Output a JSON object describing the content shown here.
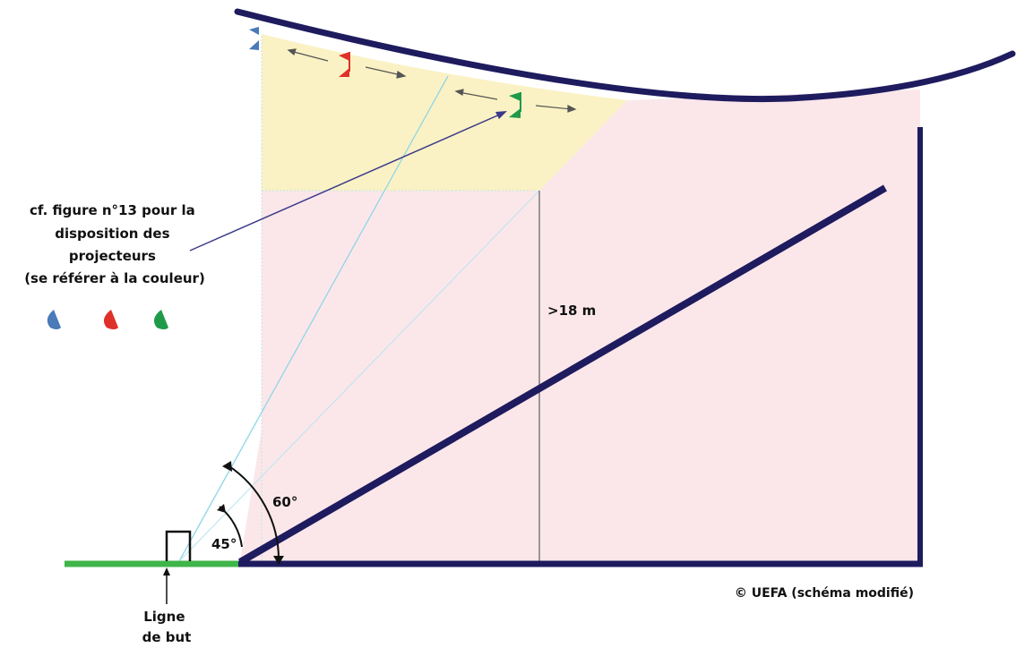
{
  "annotation": {
    "lines": [
      "cf. figure n°13 pour la",
      "disposition des",
      "projecteurs",
      "(se référer à la couleur)"
    ]
  },
  "labels": {
    "height": ">18 m",
    "angle_60": "60°",
    "angle_45": "45°",
    "goal_line": [
      "Ligne",
      "de but"
    ],
    "credit": "© UEFA (schéma modifié)"
  },
  "floodlights": [
    {
      "name": "blue-floodlight",
      "color": "#4a7ab8"
    },
    {
      "name": "red-floodlight",
      "color": "#e0302a"
    },
    {
      "name": "green-floodlight",
      "color": "#1f9a4a"
    }
  ],
  "colors": {
    "structure": "#1e1b5e",
    "pitch": "#3fb54a",
    "zone_yellow": "#faf2c4",
    "zone_pink": "#fbe7ea",
    "sightline": "#8fd6e6",
    "pointer": "#3b3b8a"
  }
}
